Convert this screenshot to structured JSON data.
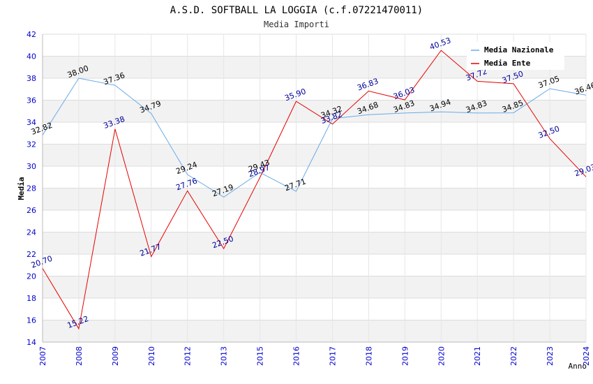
{
  "chart_data": {
    "type": "line",
    "title": "A.S.D. SOFTBALL LA LOGGIA (c.f.07221470011)",
    "subtitle": "Media Importi",
    "xlabel": "Anno",
    "ylabel": "Media",
    "ylim": [
      14,
      42
    ],
    "ytick_step": 2,
    "grid": true,
    "legend_position": "top-right",
    "categories": [
      "2007",
      "2008",
      "2009",
      "2010",
      "2012",
      "2013",
      "2015",
      "2016",
      "2017",
      "2018",
      "2019",
      "2020",
      "2021",
      "2022",
      "2023",
      "2024"
    ],
    "series": [
      {
        "name": "Media Nazionale",
        "color": "#6aaae6",
        "values": [
          32.82,
          38.0,
          37.36,
          34.79,
          29.24,
          27.19,
          29.43,
          27.71,
          34.32,
          34.68,
          34.83,
          34.94,
          34.83,
          34.85,
          37.05,
          36.46
        ],
        "labels": [
          "32.82",
          "38.00",
          "37.36",
          "34.79",
          "29.24",
          "27.19",
          "29.43",
          "27.71",
          "34.32",
          "34.68",
          "34.83",
          "34.94",
          "34.83",
          "34.85",
          "37.05",
          "36.46"
        ]
      },
      {
        "name": "Media Ente",
        "color": "#e60000",
        "values": [
          20.7,
          15.22,
          33.38,
          21.77,
          27.76,
          22.5,
          28.97,
          35.9,
          33.82,
          36.83,
          36.03,
          40.53,
          37.72,
          37.5,
          32.5,
          29.03
        ],
        "labels": [
          "20.70",
          "15.22",
          "33.38",
          "21.77",
          "27.76",
          "22.50",
          "28.97",
          "35.90",
          "33.82",
          "36.83",
          "36.03",
          "40.53",
          "37.72",
          "37.50",
          "32.50",
          "29.03"
        ]
      }
    ]
  }
}
